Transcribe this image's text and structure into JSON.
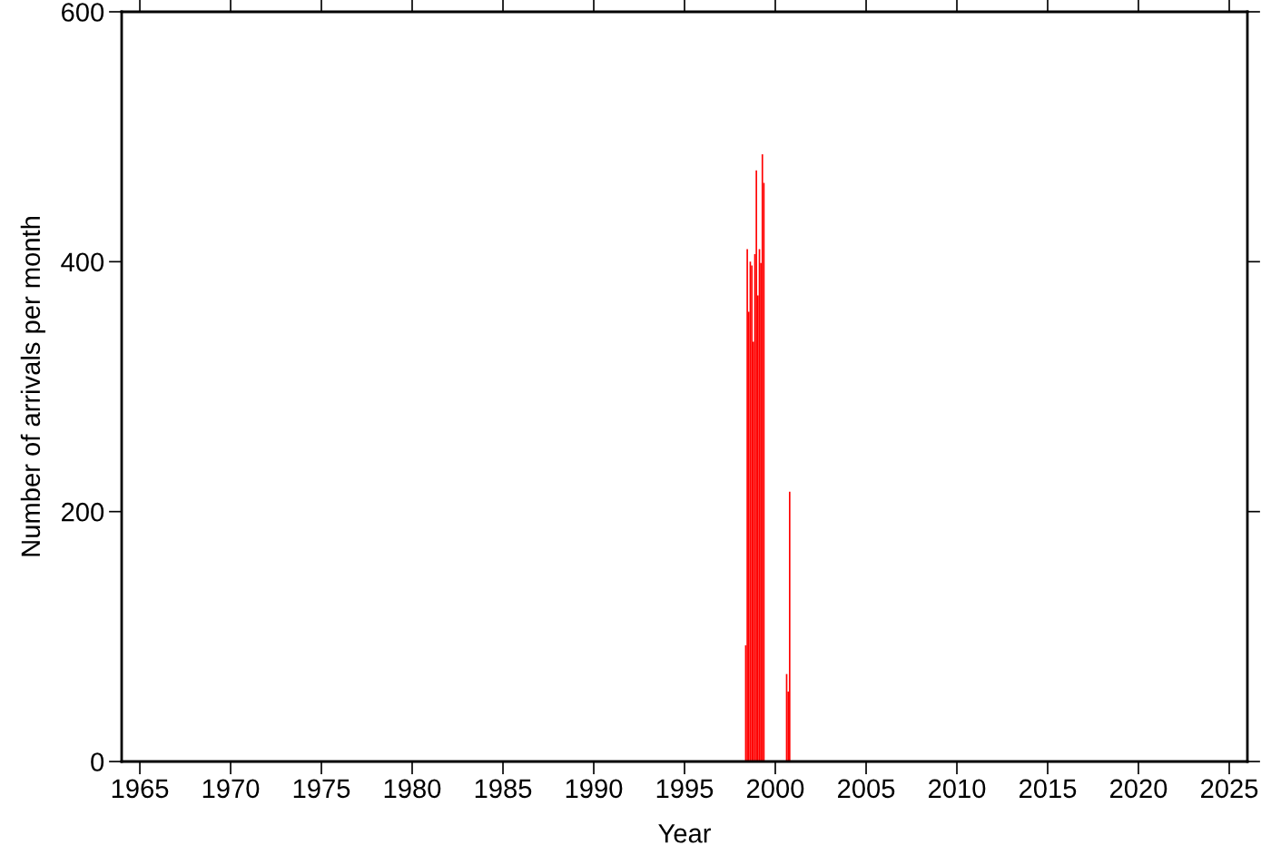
{
  "chart_data": {
    "type": "bar",
    "xlabel": "Year",
    "ylabel": "Number of arrivals per month",
    "x": [
      "1998-05",
      "1998-06",
      "1998-07",
      "1998-08",
      "1998-09",
      "1998-10",
      "1998-11",
      "1998-12",
      "1999-01",
      "1999-02",
      "1999-03",
      "1999-04",
      "1999-05",
      "2000-08",
      "2000-09",
      "2000-10"
    ],
    "values": [
      93,
      410,
      360,
      400,
      397,
      336,
      406,
      473,
      373,
      410,
      399,
      486,
      463,
      70,
      56,
      216
    ],
    "color": "#ff0000",
    "xlim": [
      "1964",
      "2026"
    ],
    "xticks": [
      "1965",
      "1970",
      "1975",
      "1980",
      "1985",
      "1990",
      "1995",
      "2000",
      "2005",
      "2010",
      "2015",
      "2020",
      "2025"
    ],
    "ylim": [
      0,
      600
    ],
    "yticks": [
      0,
      200,
      400,
      600
    ]
  }
}
